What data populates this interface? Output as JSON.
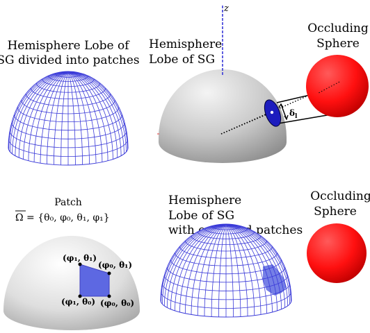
{
  "panels": {
    "top_left": {
      "caption_line1": "Hemisphere Lobe of",
      "caption_line2": "SG divided into patches"
    },
    "top_middle": {
      "caption_line1": "Hemisphere",
      "caption_line2": "Lobe of SG",
      "axis_label": "z",
      "angle_label": "δ",
      "angle_subscript": "l"
    },
    "top_right": {
      "caption_line1": "Occluding",
      "caption_line2": "Sphere"
    },
    "bottom_left": {
      "caption_line1": "Patch",
      "omega_symbol": "Ω",
      "set_text": " = {θ₀, φ₀, θ₁, φ₁}",
      "corner_top_left": "(φ₁, θ₁)",
      "corner_top_right": "(φ₀, θ₁)",
      "corner_bottom_left": "(φ₁, θ₀)",
      "corner_bottom_right": "(φ₀, θ₀)"
    },
    "bottom_middle": {
      "caption_line1": "Hemisphere",
      "caption_line2": "Lobe of SG",
      "caption_line3": "with occluded patches"
    },
    "bottom_right": {
      "caption_line1": "Occluding",
      "caption_line2": "Sphere"
    }
  },
  "colors": {
    "grid": "#2b2bd6",
    "patch": "#5f6ae0",
    "occluder": "#ff0000",
    "dome_light": "#eeeeee",
    "dome_dark": "#9a9a9a"
  }
}
